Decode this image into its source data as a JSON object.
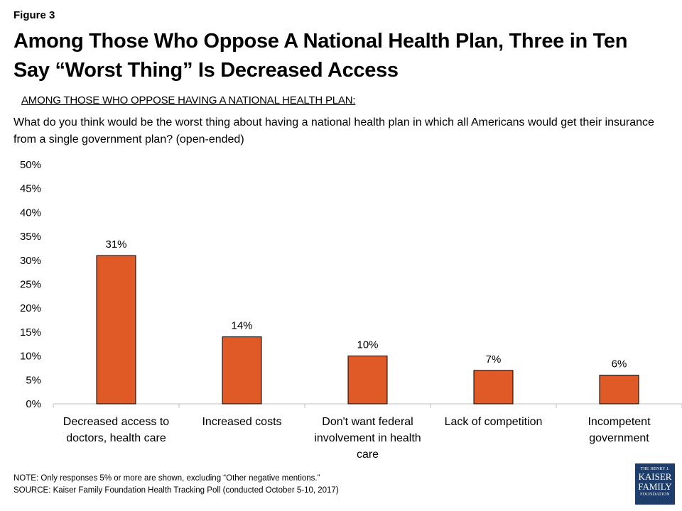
{
  "figure_label": "Figure 3",
  "title": "Among Those Who Oppose A National Health Plan, Three in Ten Say “Worst Thing” Is Decreased Access",
  "subtitle": "AMONG THOSE WHO OPPOSE HAVING A NATIONAL HEALTH PLAN:",
  "question": "What do you think would be the worst thing about having a national health plan in which all Americans would get their insurance from a single government plan? (open-ended)",
  "note": "NOTE: Only responses 5% or more are shown, excluding “Other negative mentions.”",
  "source": "SOURCE: Kaiser Family Foundation Health Tracking Poll (conducted October 5-10, 2017)",
  "logo": {
    "line1": "THE HENRY J.",
    "line2": "KAISER",
    "line3": "FAMILY",
    "line4": "FOUNDATION"
  },
  "colors": {
    "bar": "#e05a28",
    "bar_stroke": "#000000",
    "axis": "#bfbfbf",
    "logo_bg": "#1f3d6b"
  },
  "chart_data": {
    "type": "bar",
    "categories": [
      [
        "Decreased access to",
        "doctors, health care"
      ],
      [
        "Increased costs"
      ],
      [
        "Don't want federal",
        "involvement in health",
        "care"
      ],
      [
        "Lack of competition"
      ],
      [
        "Incompetent",
        "government"
      ]
    ],
    "values": [
      31,
      14,
      10,
      7,
      6
    ],
    "data_labels": [
      "31%",
      "14%",
      "10%",
      "7%",
      "6%"
    ],
    "ylim": [
      0,
      50
    ],
    "yticks": [
      0,
      5,
      10,
      15,
      20,
      25,
      30,
      35,
      40,
      45,
      50
    ],
    "ytick_labels": [
      "0%",
      "5%",
      "10%",
      "15%",
      "20%",
      "25%",
      "30%",
      "35%",
      "40%",
      "45%",
      "50%"
    ],
    "grid": false,
    "legend": "none"
  }
}
